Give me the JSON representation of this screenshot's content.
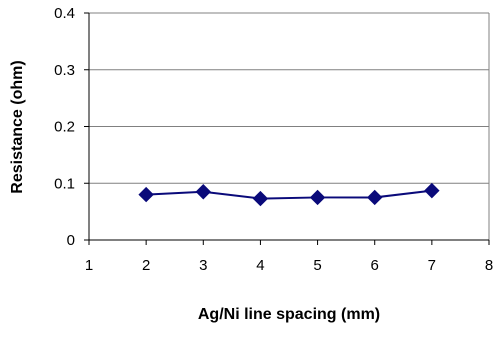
{
  "chart_data": {
    "type": "line",
    "title": "",
    "xlabel": "Ag/Ni line spacing (mm)",
    "ylabel": "Resistance (ohm)",
    "xlim": [
      1,
      8
    ],
    "ylim": [
      0,
      0.4
    ],
    "x_ticks": [
      "1",
      "2",
      "3",
      "4",
      "5",
      "6",
      "7",
      "8"
    ],
    "y_ticks": [
      "0",
      "0.1",
      "0.2",
      "0.3",
      "0.4"
    ],
    "grid": "horizontal",
    "legend": "none",
    "marker": "diamond",
    "series": [
      {
        "x": [
          2,
          3,
          4,
          5,
          6,
          7
        ],
        "y": [
          0.08,
          0.085,
          0.073,
          0.075,
          0.075,
          0.087
        ]
      }
    ]
  },
  "colors": {
    "series": "#0a0a7a",
    "axis": "#000000",
    "grid": "#808080",
    "background": "#ffffff"
  }
}
